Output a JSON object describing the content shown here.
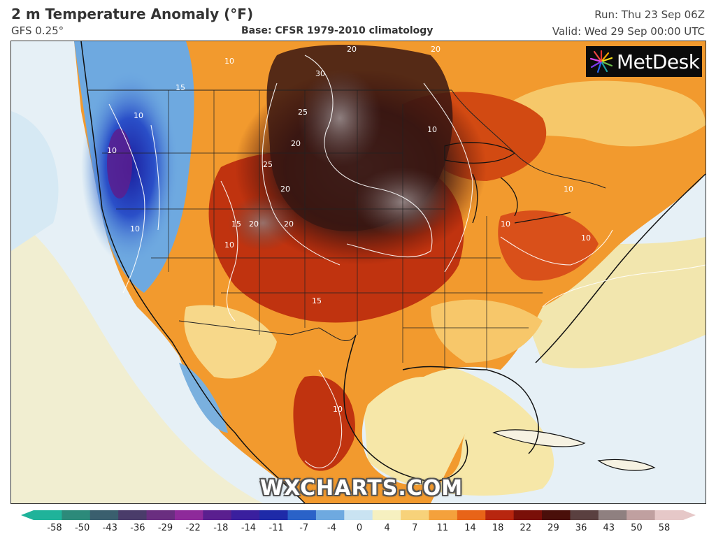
{
  "header": {
    "title": "2 m Temperature Anomaly (°F)",
    "model": "GFS 0.25°",
    "base": "Base: CFSR 1979-2010 climatology",
    "run": "Run: Thu 23 Sep 06Z",
    "valid": "Valid: Wed 29 Sep 00:00 UTC"
  },
  "logo": {
    "text": "MetDesk"
  },
  "watermark": "WXCHARTS.COM",
  "legend": {
    "ticks": [
      "-58",
      "-50",
      "-43",
      "-36",
      "-29",
      "-22",
      "-18",
      "-14",
      "-11",
      "-7",
      "-4",
      "0",
      "4",
      "7",
      "11",
      "14",
      "18",
      "22",
      "29",
      "36",
      "43",
      "50",
      "58"
    ],
    "colors": [
      "#1fb39a",
      "#2c8a7a",
      "#3a5f6e",
      "#4a3c6a",
      "#6a2e80",
      "#8e2a9a",
      "#5a1f8f",
      "#3a1f9e",
      "#1e2aa8",
      "#2a62c8",
      "#6ea9e0",
      "#c9e3f2",
      "#f6f0c0",
      "#f7d27a",
      "#f4a13c",
      "#e86418",
      "#b8260f",
      "#7a0f08",
      "#4a0f0a",
      "#5a4040",
      "#8f8080",
      "#c0a0a0",
      "#e6c8c8"
    ]
  },
  "map": {
    "contour_labels": [
      "10",
      "15",
      "10",
      "10",
      "20",
      "25",
      "30",
      "25",
      "20",
      "15",
      "10",
      "20",
      "20",
      "10",
      "20",
      "10",
      "10",
      "10",
      "10",
      "15",
      "10",
      "20"
    ]
  },
  "colors": {
    "ocean": "#e8f2f7",
    "cold": "#2a4fc8",
    "warm": "#f29a2e",
    "hot": "#b8260f",
    "extreme": "#3a1410"
  }
}
